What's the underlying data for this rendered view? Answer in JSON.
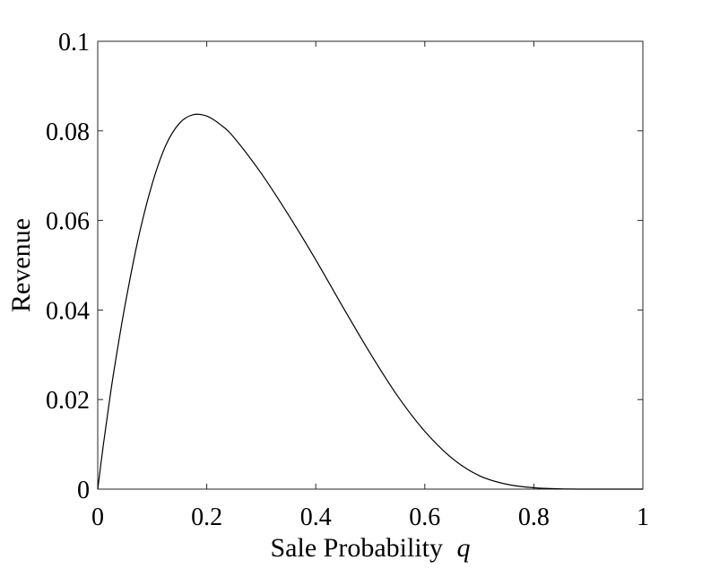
{
  "chart_data": {
    "type": "line",
    "title": "",
    "xlabel": "Sale Probability",
    "xlabel_variable": "q",
    "ylabel": "Revenue",
    "xlim": [
      0,
      1
    ],
    "ylim": [
      0,
      0.1
    ],
    "xticks": [
      0,
      0.2,
      0.4,
      0.6,
      0.8,
      1
    ],
    "xtick_labels": [
      "0",
      "0.2",
      "0.4",
      "0.6",
      "0.8",
      "1"
    ],
    "yticks": [
      0,
      0.02,
      0.04,
      0.06,
      0.08,
      0.1
    ],
    "ytick_labels": [
      "0",
      "0.02",
      "0.04",
      "0.06",
      "0.08",
      "0.1"
    ],
    "grid": false,
    "line_color": "#000000",
    "series": [
      {
        "x": [
          0,
          0.01,
          0.02,
          0.03,
          0.05,
          0.075,
          0.1,
          0.125,
          0.15,
          0.175,
          0.2,
          0.225,
          0.25,
          0.3,
          0.35,
          0.4,
          0.45,
          0.5,
          0.55,
          0.6,
          0.65,
          0.7,
          0.75,
          0.8,
          0.85,
          0.9,
          0.95,
          1
        ],
        "y": [
          0,
          0.0096,
          0.0184,
          0.0266,
          0.041,
          0.0563,
          0.0682,
          0.0768,
          0.0817,
          0.0836,
          0.0833,
          0.0814,
          0.0785,
          0.0705,
          0.0612,
          0.0512,
          0.0406,
          0.0303,
          0.0208,
          0.0129,
          0.0069,
          0.003,
          0.0011,
          0.0003,
          5e-05,
          0,
          0,
          0
        ]
      }
    ]
  }
}
